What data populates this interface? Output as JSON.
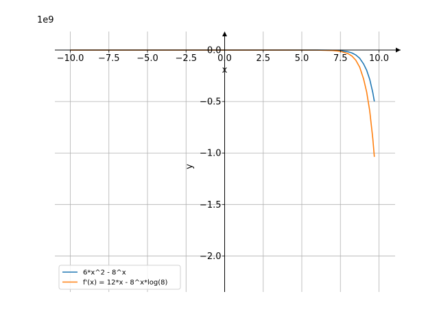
{
  "chart_data": {
    "type": "line",
    "title": "",
    "xlabel": "x",
    "ylabel": "y",
    "offset_text": "1e9",
    "xlim": [
      -11.0,
      11.4
    ],
    "ylim": [
      -2.35,
      0.18
    ],
    "y_scale_factor": 1000000000,
    "grid": true,
    "legend_position": "lower-left",
    "x_ticks": [
      -10.0,
      -7.5,
      -5.0,
      -2.5,
      0.0,
      2.5,
      5.0,
      7.5,
      10.0
    ],
    "x_tick_labels": [
      "−10.0",
      "−7.5",
      "−5.0",
      "−2.5",
      "0.0",
      "2.5",
      "5.0",
      "7.5",
      "10.0"
    ],
    "y_ticks": [
      0.0,
      -0.5,
      -1.0,
      -1.5,
      -2.0
    ],
    "y_tick_labels": [
      "0.0",
      "−0.5",
      "−1.0",
      "−1.5",
      "−2.0"
    ],
    "series": [
      {
        "name": "6*x^2 - 8^x",
        "color": "#1f77b4",
        "x": [
          -10,
          -8,
          -6,
          -4,
          -2,
          0,
          2,
          4,
          6,
          7,
          7.5,
          8,
          8.25,
          8.5,
          8.75,
          9,
          9.2,
          9.4,
          9.6,
          9.7
        ],
        "y": [
          6e-07,
          3.84e-07,
          2.16e-07,
          9.6e-08,
          2.4e-08,
          -1e-09,
          -4e-08,
          -4e-06,
          -0.000262,
          -0.0021,
          -0.00593,
          -0.0168,
          -0.0282,
          -0.0475,
          -0.0798,
          -0.1342,
          -0.1953,
          -0.2841,
          -0.4134,
          -0.4987
        ]
      },
      {
        "name": "f'(x) = 12*x - 8^x*log(8)",
        "color": "#ff7f0e",
        "x": [
          -10,
          -8,
          -6,
          -4,
          -2,
          0,
          2,
          4,
          6,
          7,
          7.5,
          8,
          8.25,
          8.5,
          8.75,
          9,
          9.2,
          9.4,
          9.6,
          9.7
        ],
        "y": [
          -1.2e-07,
          -9.6e-08,
          -7.2e-08,
          -4.8e-08,
          -2.4e-08,
          -2e-09,
          -1e-07,
          -8.5e-06,
          -0.000545,
          -0.00436,
          -0.01233,
          -0.03489,
          -0.0587,
          -0.0987,
          -0.166,
          -0.2791,
          -0.4061,
          -0.5908,
          -0.8597,
          -1.0371
        ]
      }
    ]
  }
}
